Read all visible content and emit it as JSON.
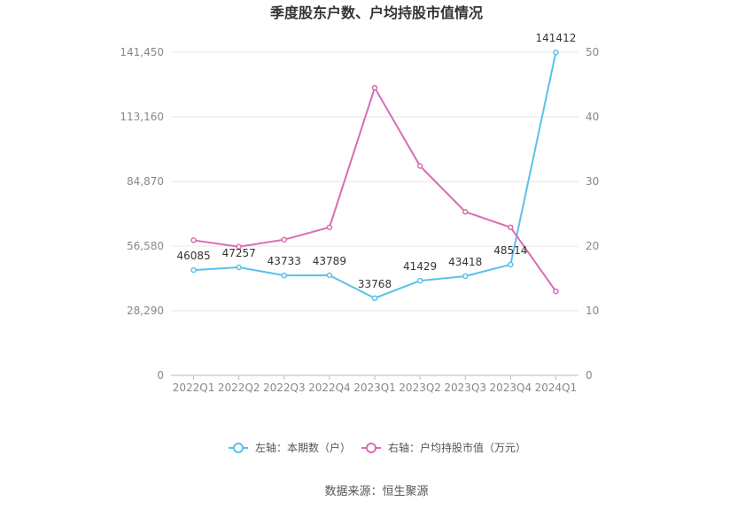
{
  "chart_data": {
    "type": "line",
    "title": "季度股东户数、户均持股市值情况",
    "categories": [
      "2022Q1",
      "2022Q2",
      "2022Q3",
      "2022Q4",
      "2023Q1",
      "2023Q2",
      "2023Q3",
      "2023Q4",
      "2024Q1"
    ],
    "y_left": {
      "ticks": [
        "0",
        "28,290",
        "56,580",
        "84,870",
        "113,160",
        "141,450"
      ],
      "min": 0,
      "max": 141450
    },
    "y_right": {
      "ticks": [
        "0",
        "10",
        "20",
        "30",
        "40",
        "50"
      ],
      "min": 0,
      "max": 50
    },
    "series": [
      {
        "name": "左轴：本期数（户）",
        "axis": "left",
        "color": "#5bc0eb",
        "values": [
          46085,
          47257,
          43733,
          43789,
          33768,
          41429,
          43418,
          48514,
          141412
        ],
        "labels": [
          "46085",
          "47257",
          "43733",
          "43789",
          "33768",
          "41429",
          "43418",
          "48514",
          "141412"
        ]
      },
      {
        "name": "右轴：户均持股市值（万元）",
        "axis": "right",
        "color": "#d96bb5",
        "values": [
          20.9,
          19.9,
          21.0,
          22.9,
          44.5,
          32.4,
          25.3,
          22.9,
          13.0
        ]
      }
    ],
    "legend_position": "bottom-center",
    "grid": true,
    "source": "数据来源：恒生聚源"
  }
}
